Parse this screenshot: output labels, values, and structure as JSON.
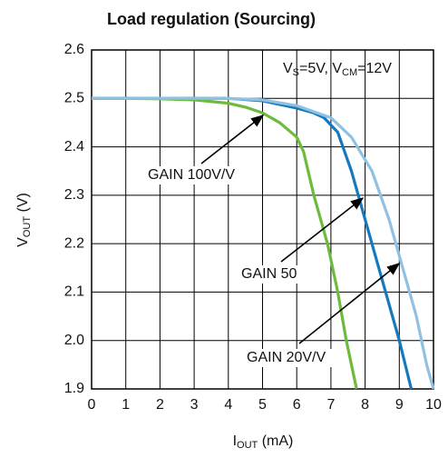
{
  "chart_data": {
    "type": "line",
    "title": "Load regulation (Sourcing)",
    "annotation_parts": [
      "V",
      "S",
      "=5V, V",
      "CM",
      "=12V"
    ],
    "xlabel_parts": [
      "I",
      "OUT",
      " (mA)"
    ],
    "ylabel_parts": [
      "V",
      "OUT",
      " (V)"
    ],
    "xlim": [
      0,
      10
    ],
    "xticks": [
      0,
      1,
      2,
      3,
      4,
      5,
      6,
      7,
      8,
      9,
      10
    ],
    "ylim": [
      1.9,
      2.6
    ],
    "yticks": [
      1.9,
      {
        "value": 2,
        "label": "2.0"
      },
      2.1,
      2.2,
      2.3,
      2.4,
      2.5,
      2.6
    ],
    "grid": true,
    "series": [
      {
        "name": "GAIN 100V/V",
        "color": "#6cbb3c",
        "x": [
          0,
          1,
          2,
          3,
          4,
          4.5,
          5,
          5.5,
          6,
          6.2,
          6.5,
          6.9,
          7.2,
          7.45,
          7.75
        ],
        "values": [
          2.5,
          2.5,
          2.499,
          2.497,
          2.49,
          2.482,
          2.47,
          2.45,
          2.42,
          2.39,
          2.3,
          2.2,
          2.1,
          2.0,
          1.9
        ]
      },
      {
        "name": "GAIN 50",
        "color": "#1479bd",
        "x": [
          0,
          2,
          4,
          5,
          6,
          6.5,
          6.8,
          7.2,
          7.6,
          8.2,
          8.6,
          9.0,
          9.35
        ],
        "values": [
          2.5,
          2.5,
          2.5,
          2.495,
          2.48,
          2.47,
          2.46,
          2.43,
          2.35,
          2.2,
          2.1,
          2.0,
          1.9
        ]
      },
      {
        "name": "GAIN 20V/V",
        "color": "#8fc1e3",
        "x": [
          0,
          2,
          4,
          5,
          6,
          7,
          7.6,
          8.2,
          8.7,
          9.1,
          9.5,
          9.8,
          10
        ],
        "values": [
          2.5,
          2.5,
          2.5,
          2.497,
          2.485,
          2.46,
          2.42,
          2.35,
          2.25,
          2.15,
          2.05,
          1.95,
          1.9
        ]
      }
    ]
  }
}
